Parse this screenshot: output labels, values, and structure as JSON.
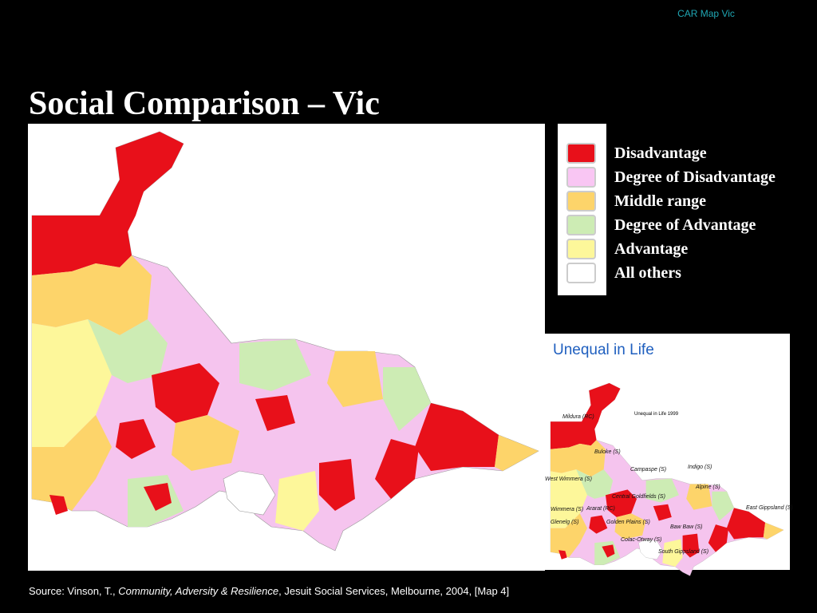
{
  "header": {
    "label": "CAR Map Vic",
    "title": "Social Comparison – Vic"
  },
  "legend": {
    "items": [
      {
        "label": "Disadvantage",
        "color": "#e8101a"
      },
      {
        "label": "Degree of Disadvantage",
        "color": "#f9c6f3"
      },
      {
        "label": "Middle range",
        "color": "#fdd46a"
      },
      {
        "label": "Degree of Advantage",
        "color": "#cdecb4"
      },
      {
        "label": "Advantage",
        "color": "#fdf79a"
      },
      {
        "label": "All others",
        "color": "#ffffff"
      }
    ]
  },
  "inset": {
    "title": "Unequal in Life",
    "map_title": "Unequal in Life 1999",
    "labels": [
      "Mildura (RC)",
      "Buloke (S)",
      "West Wimmera (S)",
      "Campaspe (S)",
      "Indigo (S)",
      "Alpine (S)",
      "Central Goldfields (S)",
      "Wimmera (S)",
      "East Gippsland (S)",
      "Ararat (RC)",
      "Golden Plains (S)",
      "Glenelg (S)",
      "Baw Baw (S)",
      "Colac-Otway (S)",
      "South Gippsland (S)"
    ]
  },
  "source": {
    "prefix": "Source:  Vinson, T., ",
    "book": "Community, Adversity & Resilience",
    "suffix": ", Jesuit Social Services, Melbourne, 2004, [Map 4]"
  }
}
